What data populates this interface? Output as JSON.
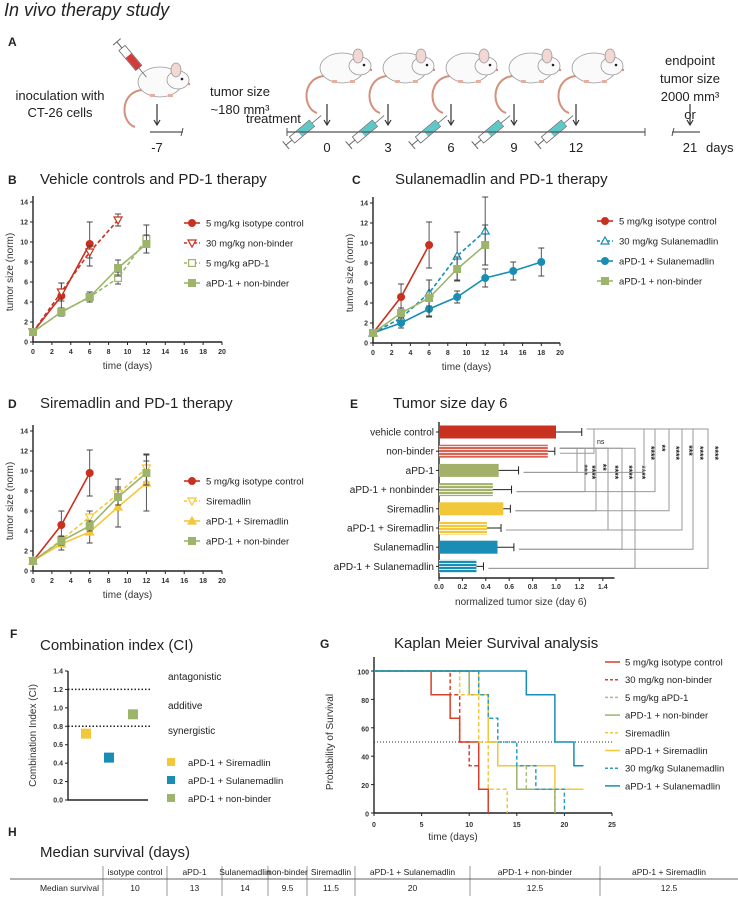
{
  "figure_title": "In vivo therapy study",
  "panel_a": {
    "label": "A",
    "inoculation": [
      "inoculation with",
      "CT-26 cells"
    ],
    "tumor_size": [
      "tumor size",
      "~180 mm³"
    ],
    "treatment": "treatment",
    "endpoint": [
      "endpoint",
      "tumor size",
      "2000 mm³",
      "or"
    ],
    "timeline_ticks": [
      "-7",
      "0",
      "3",
      "6",
      "9",
      "12",
      "21"
    ],
    "days_label": "days"
  },
  "colors": {
    "red": "#c8311f",
    "green": "#9db56b",
    "yellow": "#f2c83a",
    "blue": "#1a8db4"
  },
  "chart_data": [
    {
      "panel": "B",
      "type": "line",
      "title": "Vehicle controls and PD-1 therapy",
      "xlabel": "time (days)",
      "ylabel": "tumor size (norm)",
      "xlim": [
        0,
        20
      ],
      "ylim": [
        0,
        14
      ],
      "xticks": [
        0,
        2,
        4,
        6,
        8,
        10,
        12,
        14,
        16,
        18,
        20
      ],
      "yticks": [
        0,
        2,
        4,
        6,
        8,
        10,
        12,
        14
      ],
      "legend": "right",
      "series": [
        {
          "name": "5 mg/kg isotype control",
          "color": "#c8311f",
          "marker": "circle-filled",
          "dashed": false,
          "x": [
            0,
            3,
            6
          ],
          "y": [
            1,
            4.6,
            9.8
          ],
          "err": [
            0,
            1.3,
            2.2
          ]
        },
        {
          "name": "30 mg/kg non-binder",
          "color": "#c8311f",
          "marker": "triangle-down-open",
          "dashed": true,
          "x": [
            0,
            3,
            6,
            9
          ],
          "y": [
            1,
            5.0,
            9.0,
            12.2
          ],
          "err": [
            0,
            0.9,
            0.6,
            0.6
          ]
        },
        {
          "name": "5 mg/kg aPD-1",
          "color": "#9db56b",
          "marker": "square-open",
          "dashed": true,
          "x": [
            0,
            3,
            6,
            9,
            12
          ],
          "y": [
            1,
            3.0,
            4.5,
            6.4,
            10.3
          ],
          "err": [
            0,
            0.4,
            0.5,
            0.6,
            1.4
          ]
        },
        {
          "name": "aPD-1 + non-binder",
          "color": "#9db56b",
          "marker": "square-filled",
          "dashed": false,
          "x": [
            0,
            3,
            6,
            9,
            12
          ],
          "y": [
            1,
            3.0,
            4.5,
            7.4,
            9.8
          ],
          "err": [
            0,
            0.4,
            0.5,
            0.8,
            0.9
          ]
        }
      ]
    },
    {
      "panel": "C",
      "type": "line",
      "title": "Sulanemadlin and PD-1 therapy",
      "xlabel": "time (days)",
      "ylabel": "tumor size (norm)",
      "xlim": [
        0,
        20
      ],
      "ylim": [
        0,
        14
      ],
      "xticks": [
        0,
        2,
        4,
        6,
        8,
        10,
        12,
        14,
        16,
        18,
        20
      ],
      "yticks": [
        0,
        2,
        4,
        6,
        8,
        10,
        12,
        14
      ],
      "legend": "right",
      "series": [
        {
          "name": "5 mg/kg isotype control",
          "color": "#c8311f",
          "marker": "circle-filled",
          "dashed": false,
          "x": [
            0,
            3,
            6
          ],
          "y": [
            1,
            4.6,
            9.8
          ],
          "err": [
            0,
            1.3,
            2.3
          ]
        },
        {
          "name": "30 mg/kg Sulanemadlin",
          "color": "#1a8db4",
          "marker": "triangle-up-open",
          "dashed": true,
          "x": [
            0,
            3,
            6,
            9,
            12
          ],
          "y": [
            1,
            2.5,
            5.0,
            8.7,
            11.2
          ],
          "err": [
            0,
            0.6,
            1.3,
            2.4,
            3.4
          ]
        },
        {
          "name": "aPD-1 + Sulanemadlin",
          "color": "#1a8db4",
          "marker": "circle-filled",
          "dashed": false,
          "x": [
            0,
            3,
            6,
            9,
            12,
            15,
            18
          ],
          "y": [
            1,
            2.0,
            3.4,
            4.6,
            6.5,
            7.2,
            8.1
          ],
          "err": [
            0,
            0.5,
            0.8,
            0.6,
            0.9,
            0.9,
            1.4
          ]
        },
        {
          "name": "aPD-1 + non-binder",
          "color": "#9db56b",
          "marker": "square-filled",
          "dashed": false,
          "x": [
            0,
            3,
            6,
            9,
            12
          ],
          "y": [
            1,
            3.0,
            4.5,
            7.4,
            9.8
          ],
          "err": [
            0,
            0.5,
            1.8,
            1.2,
            2.0
          ]
        }
      ]
    },
    {
      "panel": "D",
      "type": "line",
      "title": "Siremadlin and PD-1 therapy",
      "xlabel": "time (days)",
      "ylabel": "tumor size (norm)",
      "xlim": [
        0,
        20
      ],
      "ylim": [
        0,
        14
      ],
      "xticks": [
        0,
        2,
        4,
        6,
        8,
        10,
        12,
        14,
        16,
        18,
        20
      ],
      "yticks": [
        0,
        2,
        4,
        6,
        8,
        10,
        12,
        14
      ],
      "legend": "right",
      "series": [
        {
          "name": "5 mg/kg isotype control",
          "color": "#c8311f",
          "marker": "circle-filled",
          "dashed": false,
          "x": [
            0,
            3,
            6
          ],
          "y": [
            1,
            4.6,
            9.8
          ],
          "err": [
            0,
            1.4,
            2.3
          ]
        },
        {
          "name": "Siremadlin",
          "color": "#f2c83a",
          "marker": "triangle-down-open",
          "dashed": true,
          "x": [
            0,
            3,
            6,
            9,
            12
          ],
          "y": [
            1,
            3.1,
            5.4,
            7.7,
            10.3
          ],
          "err": [
            0,
            0.4,
            0.6,
            1.5,
            1.4
          ]
        },
        {
          "name": "aPD-1 + Siremadlin",
          "color": "#f2c83a",
          "marker": "triangle-up-filled",
          "dashed": false,
          "x": [
            0,
            3,
            6,
            9,
            12
          ],
          "y": [
            1,
            2.7,
            3.9,
            6.4,
            8.8
          ],
          "err": [
            0,
            0.6,
            1.1,
            2.0,
            2.8
          ]
        },
        {
          "name": "aPD-1 + non-binder",
          "color": "#9db56b",
          "marker": "square-filled",
          "dashed": false,
          "x": [
            0,
            3,
            6,
            9,
            12
          ],
          "y": [
            1,
            3.0,
            4.5,
            7.4,
            9.8
          ],
          "err": [
            0,
            0.4,
            0.5,
            0.8,
            1.2
          ]
        }
      ]
    },
    {
      "panel": "E",
      "type": "bar",
      "orientation": "horizontal",
      "title": "Tumor size day 6",
      "xlabel": "normalized tumor size (day 6)",
      "xlim": [
        0,
        1.5
      ],
      "xticks": [
        "0.0",
        "0.2",
        "0.4",
        "0.6",
        "0.8",
        "1.0",
        "1.2",
        "1.4"
      ],
      "categories": [
        "vehicle control",
        "non-binder",
        "aPD-1",
        "aPD-1 + nonbinder",
        "Siremadlin",
        "aPD-1 + Siremadlin",
        "Sulanemadlin",
        "aPD-1 + Sulanemadlin"
      ],
      "values": [
        1.0,
        0.93,
        0.51,
        0.46,
        0.55,
        0.41,
        0.5,
        0.32
      ],
      "errors": [
        0.22,
        0.06,
        0.17,
        0.16,
        0.06,
        0.12,
        0.14,
        0.06
      ],
      "bar_colors": [
        "#c8311f",
        "#d96454",
        "#a3b06a",
        "#a3b06a",
        "#f2c83a",
        "#f2c83a",
        "#1a8db4",
        "#1a8db4"
      ],
      "hatched": [
        false,
        true,
        false,
        true,
        false,
        true,
        false,
        true
      ],
      "comparisons": [
        {
          "from": 0,
          "to": 1,
          "label": "ns"
        },
        {
          "from": 1,
          "to": 2,
          "label": "***"
        },
        {
          "from": 1,
          "to": 3,
          "label": "****"
        },
        {
          "from": 1,
          "to": 4,
          "label": "**"
        },
        {
          "from": 1,
          "to": 5,
          "label": "****"
        },
        {
          "from": 1,
          "to": 6,
          "label": "****"
        },
        {
          "from": 1,
          "to": 7,
          "label": "****"
        },
        {
          "from": 0,
          "to": 2,
          "label": "****"
        },
        {
          "from": 0,
          "to": 3,
          "label": "**"
        },
        {
          "from": 0,
          "to": 4,
          "label": "****"
        },
        {
          "from": 0,
          "to": 5,
          "label": "***"
        },
        {
          "from": 0,
          "to": 6,
          "label": "****"
        },
        {
          "from": 0,
          "to": 7,
          "label": "****"
        }
      ]
    },
    {
      "panel": "F",
      "type": "scatter",
      "title": "Combination index (CI)",
      "ylabel": "Combination Index (CI)",
      "ylim": [
        0,
        1.4
      ],
      "yticks": [
        "0.0",
        "0.2",
        "0.4",
        "0.6",
        "0.8",
        "1.0",
        "1.2",
        "1.4"
      ],
      "reference_lines": [
        1.2,
        0.8
      ],
      "regions": [
        "antagonistic",
        "additive",
        "synergistic"
      ],
      "points": [
        {
          "name": "aPD-1 + Siremadlin",
          "value": 0.72,
          "color": "#f2c83a"
        },
        {
          "name": "aPD-1 + Sulanemadlin",
          "value": 0.46,
          "color": "#1a8db4"
        },
        {
          "name": "aPD-1 + non-binder",
          "value": 0.93,
          "color": "#9db56b"
        }
      ]
    },
    {
      "panel": "G",
      "type": "line",
      "subtype": "kaplan-meier",
      "title": "Kaplan Meier Survival analysis",
      "xlabel": "time (days)",
      "ylabel": "Probability of Survival",
      "xlim": [
        0,
        25
      ],
      "ylim": [
        0,
        100
      ],
      "xticks": [
        0,
        5,
        10,
        15,
        20,
        25
      ],
      "yticks": [
        0,
        20,
        40,
        60,
        80,
        100
      ],
      "median_line": 50,
      "legend": "right",
      "series": [
        {
          "name": "5 mg/kg isotype control",
          "color": "#d9402a",
          "dashed": false,
          "steps": [
            [
              0,
              100
            ],
            [
              6,
              83.3
            ],
            [
              8,
              66.7
            ],
            [
              9,
              50
            ],
            [
              11,
              16.7
            ],
            [
              12,
              0
            ]
          ],
          "end": 12
        },
        {
          "name": "30 mg/kg non-binder",
          "color": "#d9402a",
          "dashed": true,
          "steps": [
            [
              0,
              100
            ],
            [
              8,
              83.3
            ],
            [
              9,
              50
            ],
            [
              10,
              33.3
            ],
            [
              11,
              16.7
            ],
            [
              12,
              0
            ]
          ],
          "end": 12
        },
        {
          "name": "5 mg/kg aPD-1",
          "color": "#a8c07a",
          "dashed": true,
          "steps": [
            [
              0,
              100
            ],
            [
              10,
              83.3
            ],
            [
              12,
              50
            ],
            [
              13,
              33.3
            ],
            [
              16,
              16.7
            ],
            [
              19,
              0
            ]
          ],
          "end": 19
        },
        {
          "name": "aPD-1 + non-binder",
          "color": "#9db56b",
          "dashed": false,
          "steps": [
            [
              0,
              100
            ],
            [
              10,
              83.3
            ],
            [
              12,
              50
            ],
            [
              13,
              33.3
            ],
            [
              15,
              16.7
            ],
            [
              19,
              0
            ]
          ],
          "end": 19
        },
        {
          "name": "Siremadlin",
          "color": "#f2c83a",
          "dashed": true,
          "steps": [
            [
              0,
              100
            ],
            [
              9,
              83.3
            ],
            [
              11,
              50
            ],
            [
              12,
              16.7
            ],
            [
              14,
              0
            ]
          ],
          "end": 14
        },
        {
          "name": "aPD-1 + Siremadlin",
          "color": "#f2c83a",
          "dashed": false,
          "steps": [
            [
              0,
              100
            ],
            [
              11,
              83.3
            ],
            [
              12,
              50
            ],
            [
              13,
              33.3
            ],
            [
              19,
              16.7
            ]
          ],
          "end": 22
        },
        {
          "name": "30 mg/kg Sulanemadlin",
          "color": "#2a9cc4",
          "dashed": true,
          "steps": [
            [
              0,
              100
            ],
            [
              11,
              83.3
            ],
            [
              12,
              66.7
            ],
            [
              13,
              50
            ],
            [
              15,
              33.3
            ],
            [
              17,
              16.7
            ],
            [
              20,
              0
            ]
          ],
          "end": 20
        },
        {
          "name": "aPD-1 + Sulanemadlin",
          "color": "#1a8db4",
          "dashed": false,
          "steps": [
            [
              0,
              100
            ],
            [
              16,
              83.3
            ],
            [
              19,
              50
            ],
            [
              21,
              33.3
            ]
          ],
          "end": 22
        }
      ]
    }
  ],
  "median_table": {
    "label": "H",
    "title": "Median survival (days)",
    "row_label": "Median survival",
    "columns": [
      "isotype control",
      "aPD-1",
      "Sulanemadlin",
      "non-binder",
      "Siremadlin",
      "aPD-1 + Sulanemadlin",
      "aPD-1 + non-binder",
      "aPD-1 + Siremadlin"
    ],
    "values": [
      "10",
      "13",
      "14",
      "9.5",
      "11.5",
      "20",
      "12.5",
      "12.5"
    ]
  }
}
